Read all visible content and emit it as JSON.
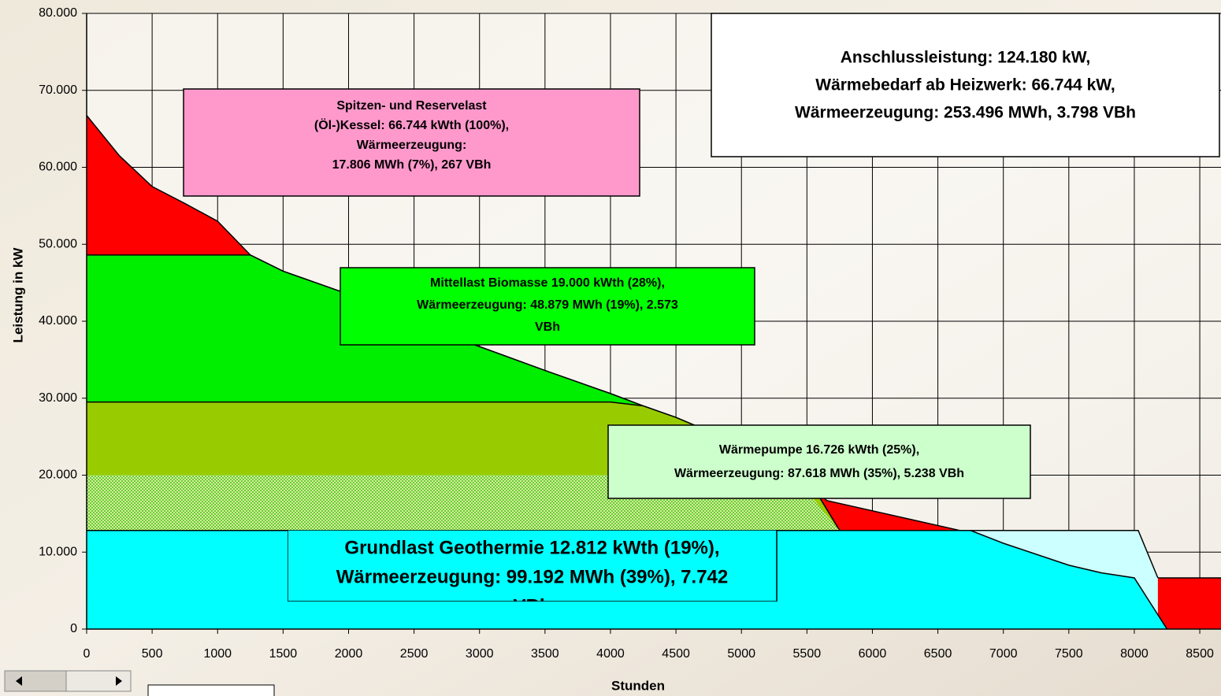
{
  "chart_data": {
    "type": "area",
    "xlabel": "Stunden",
    "ylabel": "Leistung in kW",
    "xlim": [
      0,
      8662
    ],
    "ylim": [
      0,
      80000
    ],
    "xticks": [
      0,
      500,
      1000,
      1500,
      2000,
      2500,
      3000,
      3500,
      4000,
      4500,
      5000,
      5500,
      6000,
      6500,
      7000,
      7500,
      8000,
      8500
    ],
    "yticks": [
      0,
      {
        "value": 10000,
        "label": "10.000"
      },
      {
        "value": 20000,
        "label": "20.000"
      },
      {
        "value": 30000,
        "label": "30.000"
      },
      {
        "value": 40000,
        "label": "40.000"
      },
      {
        "value": 50000,
        "label": "50.000"
      },
      {
        "value": 60000,
        "label": "60.000"
      },
      {
        "value": 70000,
        "label": "70.000"
      },
      {
        "value": 80000,
        "label": "80.000"
      }
    ],
    "grid": true,
    "series": [
      {
        "color": "#ff0000",
        "x": [
          0,
          250,
          500,
          750,
          1000,
          1250,
          1500,
          2000,
          2500,
          3000,
          3500,
          4000,
          4250,
          4500,
          5000,
          5500,
          5650,
          6750,
          7000,
          7500,
          7750,
          8000,
          8662
        ],
        "values": [
          66744,
          61500,
          57500,
          55300,
          53000,
          48600,
          46500,
          43500,
          39800,
          36700,
          33600,
          30600,
          29000,
          27500,
          23900,
          19800,
          16700,
          12500,
          11150,
          8300,
          7300,
          6650,
          6650
        ]
      },
      {
        "color": "#00ee00",
        "x": [
          0,
          1250,
          1500,
          2000,
          2500,
          3000,
          3500,
          4000,
          4250,
          4500,
          5000,
          5500,
          5600,
          5750
        ],
        "values": [
          48600,
          48600,
          46500,
          43500,
          39800,
          36700,
          33600,
          30600,
          29000,
          27500,
          23900,
          19800,
          17000,
          12800
        ]
      },
      {
        "color": "#99cc00",
        "x": [
          0,
          4000,
          4250,
          4500,
          5000,
          5500,
          5600,
          5750
        ],
        "values": [
          29500,
          29500,
          29000,
          27500,
          23900,
          19800,
          17000,
          12800
        ]
      },
      {
        "color": "#99dd33",
        "hatch": true,
        "x": [
          0,
          5400,
          5750
        ],
        "values": [
          20000,
          20000,
          12800
        ]
      },
      {
        "color": "#ccffff",
        "x": [
          5750,
          8030,
          8180
        ],
        "values": [
          12812,
          12812,
          6650
        ]
      },
      {
        "color": "#00ffff",
        "x": [
          0,
          6750,
          7000,
          7500,
          7750,
          8000,
          8250
        ],
        "values": [
          12812,
          12812,
          11150,
          8300,
          7300,
          6650,
          0
        ]
      }
    ],
    "annotations": [
      {
        "color": "#ff99cc",
        "lines": [
          "Spitzen- und Reservelast",
          "(Öl-)Kessel: 66.744 kWth (100%),",
          "Wärmeerzeugung:",
          "17.806 MWh (7%), 267 VBh"
        ]
      },
      {
        "color": "#ffffff",
        "lines": [
          "Anschlussleistung: 124.180 kW,",
          "Wärmebedarf ab Heizwerk: 66.744 kW,",
          "Wärmeerzeugung: 253.496 MWh, 3.798 VBh"
        ]
      },
      {
        "color": "#00ff00",
        "lines": [
          "Mittellast Biomasse 19.000 kWth (28%),",
          "Wärmeerzeugung: 48.879 MWh (19%), 2.573",
          "VBh"
        ]
      },
      {
        "color": "#ccffcc",
        "lines": [
          "Wärmepumpe 16.726 kWth (25%),",
          "Wärmeerzeugung: 87.618 MWh (35%), 5.238 VBh"
        ]
      },
      {
        "color": "#00ffff",
        "lines": [
          "Grundlast Geothermie 12.812 kWth (19%),",
          "Wärmeerzeugung: 99.192 MWh (39%), 7.742",
          "VBh"
        ]
      }
    ]
  }
}
